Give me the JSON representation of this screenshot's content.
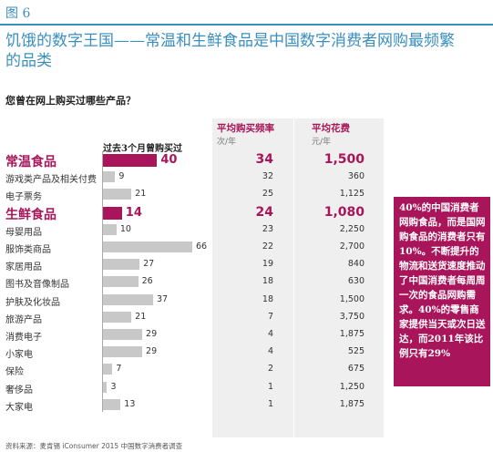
{
  "figure_label": "图 6",
  "title": "饥饿的数字王国——常温和生鲜食品是中国数字消费者网购最频繁的品类",
  "question": "您曾在网上购买过哪些产品？",
  "bar_header": "过去3个月曾购买过",
  "col_frequency": {
    "label": "平均购买频率",
    "unit": "次/年"
  },
  "col_spend": {
    "label": "平均花费",
    "unit": "元/年"
  },
  "callout": "40%的中国消费者网购食品，而是国网购食品的消费者只有10%。不断提升的物流和送货速度推动了中国消费者每周周一次的食品网购需求。40%的零售商家提供当天或次日送达，而2011年该比例只有29%",
  "source": "资料来源：麦肯锡 iConsumer 2015 中国数字消费者调查",
  "colors": {
    "accent": "#a8155a",
    "bar": "#c8c8c8",
    "title": "#3a8fbf"
  },
  "chart_data": {
    "type": "bar",
    "orientation": "horizontal",
    "categories": [
      "常温食品",
      "游戏类产品及相关付费",
      "电子票务",
      "生鲜食品",
      "母婴用品",
      "服饰类商品",
      "家居用品",
      "图书及音像制品",
      "护肤及化妆品",
      "旅游产品",
      "消费电子",
      "小家电",
      "保险",
      "奢侈品",
      "大家电"
    ],
    "major": [
      true,
      false,
      false,
      true,
      false,
      false,
      false,
      false,
      false,
      false,
      false,
      false,
      false,
      false,
      false
    ],
    "values": [
      40,
      9,
      21,
      14,
      10,
      66,
      27,
      26,
      37,
      21,
      29,
      29,
      7,
      3,
      13
    ],
    "frequency": [
      "34",
      "32",
      "25",
      "24",
      "23",
      "22",
      "19",
      "18",
      "18",
      "7",
      "4",
      "4",
      "2",
      "1",
      "1"
    ],
    "spend": [
      "1,500",
      "360",
      "1,125",
      "1,080",
      "2,250",
      "2,700",
      "840",
      "630",
      "1,500",
      "3,750",
      "1,875",
      "525",
      "675",
      "1,250",
      "1,875"
    ],
    "xlim": [
      0,
      66
    ]
  }
}
